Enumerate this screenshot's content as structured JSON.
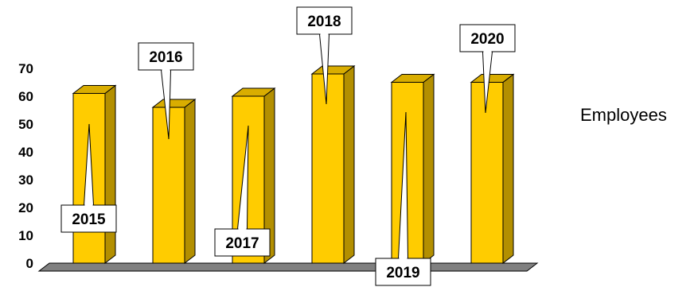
{
  "chart_data": {
    "type": "bar",
    "categories": [
      "2015",
      "2016",
      "2017",
      "2018",
      "2019",
      "2020"
    ],
    "series": [
      {
        "name": "Employees",
        "values": [
          61,
          56,
          60,
          68,
          65,
          65
        ]
      }
    ],
    "ylim": [
      0,
      70
    ],
    "yticks": [
      "0",
      "10",
      "20",
      "30",
      "40",
      "50",
      "60",
      "70"
    ],
    "title": "",
    "xlabel": "",
    "ylabel": "",
    "grid": false,
    "legend_position": "right",
    "colors": {
      "bar_front": "#FFCC00",
      "bar_side": "#B38F00",
      "bar_top": "#D9AD00",
      "floor": "#808080"
    }
  }
}
